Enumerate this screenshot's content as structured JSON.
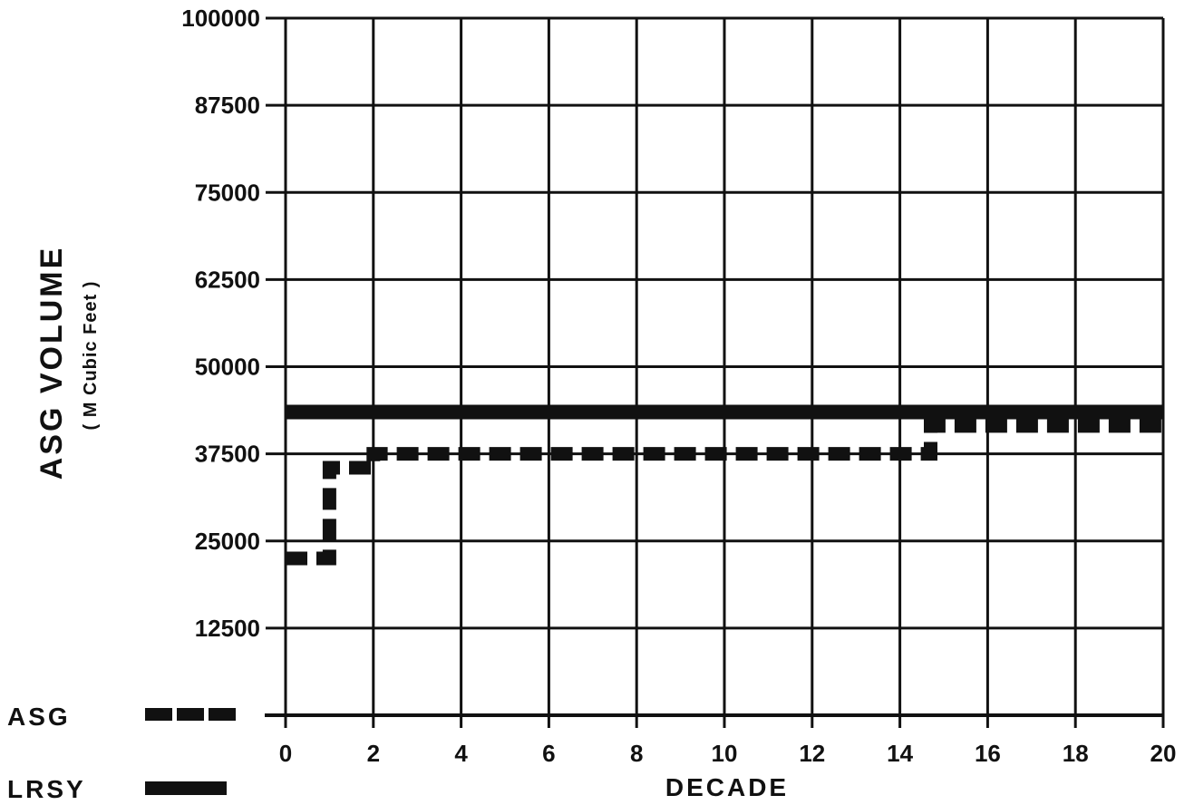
{
  "chart_data": {
    "type": "line",
    "title": "",
    "xlabel": "DECADE",
    "ylabel": "ASG VOLUME",
    "ylabel_sub": "( M Cubic Feet )",
    "xlim": [
      0,
      20
    ],
    "ylim": [
      0,
      100000
    ],
    "x_ticks": [
      0,
      2,
      4,
      6,
      8,
      10,
      12,
      14,
      16,
      18,
      20
    ],
    "y_ticks": [
      12500,
      25000,
      37500,
      50000,
      62500,
      75000,
      87500,
      100000
    ],
    "x_tick_labels": [
      "0",
      "2",
      "4",
      "6",
      "8",
      "10",
      "12",
      "14",
      "16",
      "18",
      "20"
    ],
    "y_tick_labels": [
      "12500",
      "25000",
      "37500",
      "50000",
      "62500",
      "75000",
      "87500",
      "100000"
    ],
    "grid": true,
    "legend_placement": "bottom-left",
    "series": [
      {
        "name": "ASG",
        "style": "dashed",
        "x": [
          0,
          1,
          1,
          2,
          2,
          14.7,
          14.7,
          20
        ],
        "values": [
          22500,
          22500,
          35500,
          35500,
          37500,
          37500,
          41500,
          41500
        ]
      },
      {
        "name": "LRSY",
        "style": "solid",
        "x": [
          0,
          20
        ],
        "values": [
          43500,
          43500
        ]
      }
    ],
    "colors": {
      "series": "#111111",
      "grid": "#111111",
      "background": "#ffffff"
    }
  }
}
